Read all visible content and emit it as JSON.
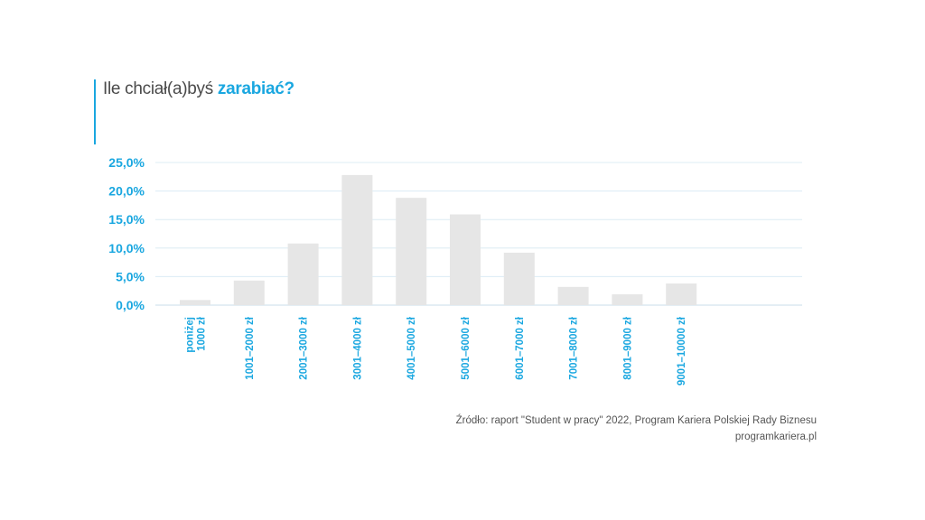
{
  "title": {
    "prefix": "Ile chciał(a)byś ",
    "highlight": "zarabiać?"
  },
  "colors": {
    "accent": "#1aa7e0",
    "bar": "#e6e6e6",
    "grid": "#dcecf4",
    "text": "#555555"
  },
  "chart_data": {
    "type": "bar",
    "categories": [
      "poniżej 1000 zł",
      "1001–2000 zł",
      "2001–3000 zł",
      "3001–4000 zł",
      "4001–5000 zł",
      "5001–6000 zł",
      "6001–7000 zł",
      "7001–8000 zł",
      "8001–9000 zł",
      "9001–10000 zł"
    ],
    "category_lines": [
      [
        "poniżej",
        "1000 zł"
      ],
      [
        "1001–2000 zł"
      ],
      [
        "2001–3000 zł"
      ],
      [
        "3001–4000 zł"
      ],
      [
        "4001–5000 zł"
      ],
      [
        "5001–6000 zł"
      ],
      [
        "6001–7000 zł"
      ],
      [
        "7001–8000 zł"
      ],
      [
        "8001–9000 zł"
      ],
      [
        "9001–10000 zł"
      ]
    ],
    "values": [
      0.9,
      4.3,
      10.8,
      22.8,
      18.8,
      15.9,
      9.2,
      3.2,
      1.9,
      3.8
    ],
    "yticks": [
      "0,0%",
      "5,0%",
      "10,0%",
      "15,0%",
      "20,0%",
      "25,0%"
    ],
    "ylim": [
      0,
      25
    ],
    "grid": true
  },
  "source": {
    "line1": "Źródło: raport \"Student w pracy\" 2022, Program Kariera Polskiej Rady Biznesu",
    "line2": "programkariera.pl"
  }
}
